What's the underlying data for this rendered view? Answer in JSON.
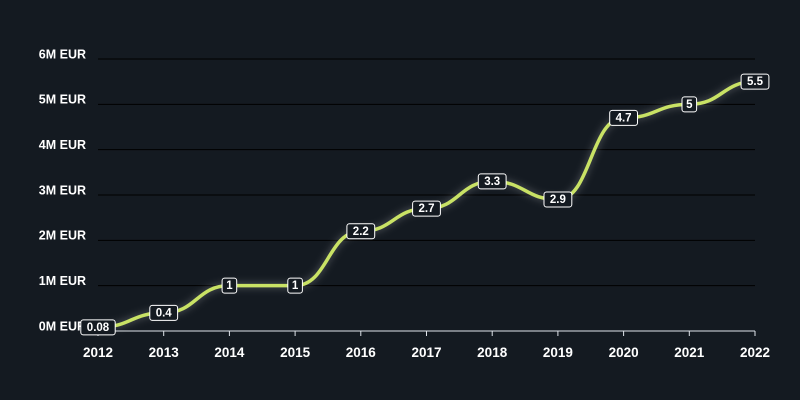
{
  "chart_data": {
    "type": "line",
    "x": [
      "2012",
      "2013",
      "2014",
      "2015",
      "2016",
      "2017",
      "2018",
      "2019",
      "2020",
      "2021",
      "2022"
    ],
    "series": [
      {
        "values": [
          0.08,
          0.4,
          1,
          1,
          2.2,
          2.7,
          3.3,
          2.9,
          4.7,
          5,
          5.5
        ]
      }
    ],
    "data_labels": [
      "0.08",
      "0.4",
      "1",
      "1",
      "2.2",
      "2.7",
      "3.3",
      "2.9",
      "4.7",
      "5",
      "5.5"
    ],
    "y_ticks": [
      0,
      1,
      2,
      3,
      4,
      5,
      6
    ],
    "y_tick_labels": [
      "0M EUR",
      "1M EUR",
      "2M EUR",
      "3M EUR",
      "4M EUR",
      "5M EUR",
      "6M EUR"
    ],
    "ylim": [
      0,
      6
    ],
    "grid": true,
    "colors": {
      "background": "#141a21",
      "line": "#c9e265",
      "grid": "#000000",
      "text": "#ffffff"
    }
  }
}
